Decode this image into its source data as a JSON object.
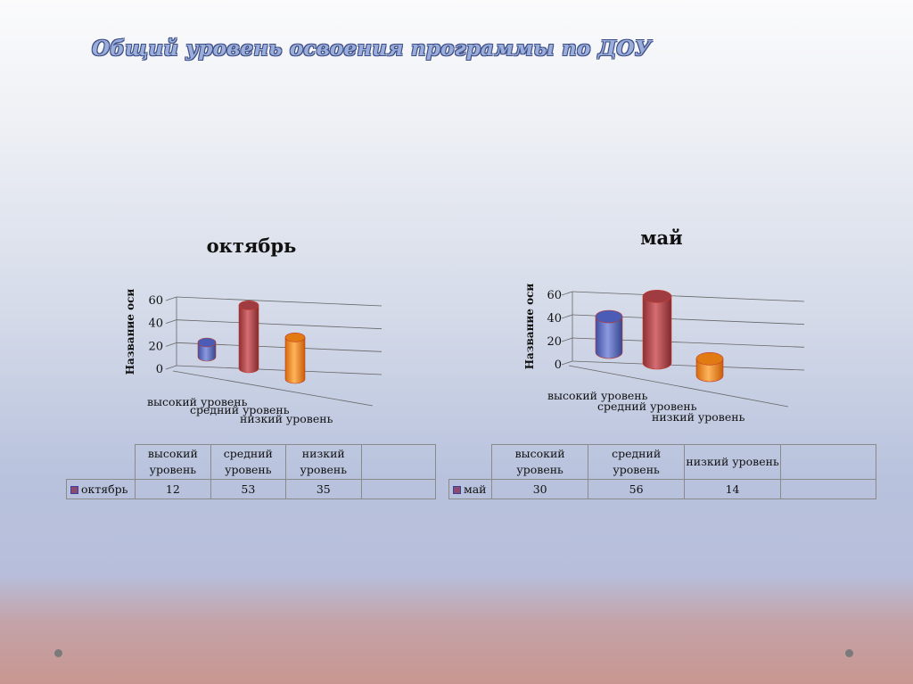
{
  "page": {
    "title": "Общий уровень освоения программы по ДОУ"
  },
  "colors": {
    "blue": "#6678c8",
    "red": "#b5474b",
    "orange": "#f08a1c",
    "swatch": "#8c4a6e"
  },
  "chart_data": [
    {
      "type": "bar",
      "title": "октябрь",
      "ylabel": "Название оси",
      "xlabel": "",
      "ylim": [
        0,
        60
      ],
      "yticks": [
        0,
        20,
        40,
        60
      ],
      "categories": [
        "высокий уровень",
        "средний уровень",
        "низкий уровень"
      ],
      "series": [
        {
          "name": "октябрь",
          "values": [
            12,
            53,
            35
          ]
        }
      ],
      "grid": true,
      "legend": "table"
    },
    {
      "type": "bar",
      "title": "май",
      "ylabel": "Название оси",
      "xlabel": "",
      "ylim": [
        0,
        60
      ],
      "yticks": [
        0,
        20,
        40,
        60
      ],
      "categories": [
        "высокий уровень",
        "средний уровень",
        "низкий уровень"
      ],
      "series": [
        {
          "name": "май",
          "values": [
            30,
            56,
            14
          ]
        }
      ],
      "grid": true,
      "legend": "table"
    }
  ],
  "tables": [
    {
      "headers": [
        "высокий уровень",
        "средний уровень",
        "низкий уровень"
      ],
      "row_label": "октябрь",
      "values": [
        "12",
        "53",
        "35"
      ]
    },
    {
      "headers": [
        "высокий уровень",
        "средний уровень",
        "низкий уровень"
      ],
      "row_label": "май",
      "values": [
        "30",
        "56",
        "14"
      ]
    }
  ]
}
